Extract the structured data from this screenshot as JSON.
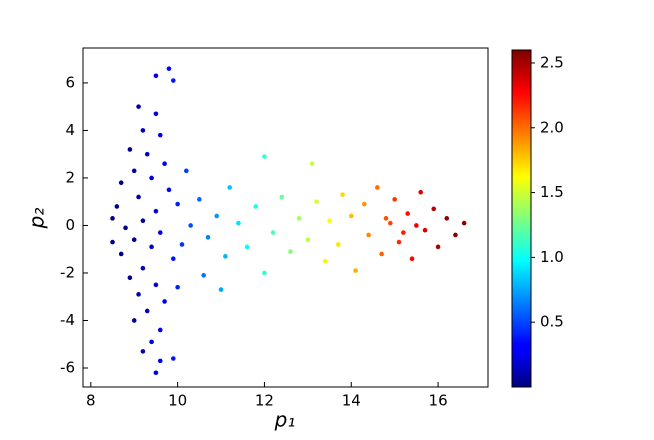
{
  "chart_data": {
    "type": "scatter",
    "xlabel": "p₁",
    "ylabel": "p₂",
    "xlim": [
      7.82,
      17.15
    ],
    "ylim": [
      -6.8,
      7.47
    ],
    "xticks": [
      8,
      10,
      12,
      14,
      16
    ],
    "yticks": [
      -6,
      -4,
      -2,
      0,
      2,
      4,
      6
    ],
    "colormap": "jet",
    "clim": [
      0,
      2.6
    ],
    "cticks": [
      0.5,
      {
        "value": 1.0,
        "label": "1.0"
      },
      1.5,
      {
        "value": 2.0,
        "label": "2.0"
      },
      2.5
    ],
    "x": [
      9.8,
      9.5,
      9.9,
      9.1,
      9.5,
      9.2,
      9.6,
      8.9,
      9.3,
      9.7,
      9.0,
      9.4,
      8.7,
      9.8,
      9.1,
      8.6,
      9.5,
      9.2,
      8.8,
      9.6,
      9.0,
      9.4,
      8.7,
      9.9,
      9.2,
      8.9,
      9.5,
      9.1,
      9.7,
      9.3,
      9.0,
      9.6,
      9.4,
      9.2,
      9.6,
      9.5,
      9.9,
      8.5,
      8.5,
      10.0,
      10.1,
      10.2,
      10.0,
      10.5,
      10.7,
      10.9,
      11.1,
      11.2,
      11.4,
      11.6,
      11.8,
      12.0,
      12.0,
      12.2,
      12.4,
      12.6,
      12.8,
      13.0,
      13.1,
      13.2,
      13.4,
      13.5,
      13.7,
      13.8,
      14.0,
      14.1,
      14.3,
      14.4,
      14.6,
      14.7,
      14.9,
      15.0,
      15.1,
      15.3,
      15.4,
      15.6,
      15.7,
      15.9,
      16.0,
      16.2,
      16.4,
      16.6,
      15.5,
      15.2,
      14.8,
      10.3,
      11.0,
      10.6
    ],
    "values": [
      6.6,
      6.3,
      6.1,
      5.0,
      4.7,
      4.0,
      3.8,
      3.2,
      3.0,
      2.6,
      2.3,
      2.0,
      1.8,
      1.5,
      1.2,
      0.8,
      0.6,
      0.2,
      -0.1,
      -0.3,
      -0.6,
      -0.9,
      -1.2,
      -1.4,
      -1.8,
      -2.2,
      -2.5,
      -2.9,
      -3.2,
      -3.6,
      -4.0,
      -4.4,
      -4.9,
      -5.3,
      -5.7,
      -6.2,
      -5.6,
      0.3,
      -0.7,
      0.9,
      -0.8,
      2.3,
      -2.6,
      1.1,
      -0.5,
      0.4,
      -1.3,
      1.6,
      0.1,
      -0.9,
      0.8,
      2.9,
      -2.0,
      -0.3,
      1.2,
      -1.1,
      0.3,
      -0.6,
      2.6,
      1.0,
      -1.5,
      0.2,
      -0.8,
      1.3,
      0.4,
      -1.9,
      0.9,
      -0.4,
      1.6,
      -1.2,
      0.1,
      1.1,
      -0.7,
      0.5,
      -1.4,
      1.4,
      -0.2,
      0.7,
      -0.9,
      0.3,
      -0.4,
      0.1,
      0.0,
      -0.3,
      0.3,
      0.0,
      -2.7,
      -2.1
    ],
    "c": [
      0.34,
      0.24,
      0.38,
      0.1,
      0.24,
      0.14,
      0.28,
      0.03,
      0.17,
      0.31,
      0.07,
      0.21,
      0.02,
      0.34,
      0.1,
      0.02,
      0.24,
      0.14,
      0.02,
      0.28,
      0.07,
      0.21,
      0.02,
      0.38,
      0.14,
      0.03,
      0.24,
      0.1,
      0.31,
      0.17,
      0.07,
      0.28,
      0.21,
      0.14,
      0.28,
      0.24,
      0.38,
      0.02,
      0.02,
      0.41,
      0.45,
      0.48,
      0.41,
      0.59,
      0.66,
      0.72,
      0.79,
      0.83,
      0.9,
      0.97,
      1.03,
      1.1,
      1.1,
      1.17,
      1.24,
      1.31,
      1.38,
      1.45,
      1.48,
      1.52,
      1.59,
      1.62,
      1.69,
      1.72,
      1.79,
      1.83,
      1.9,
      1.93,
      2.0,
      2.03,
      2.1,
      2.14,
      2.17,
      2.24,
      2.28,
      2.34,
      2.38,
      2.45,
      2.48,
      2.55,
      2.58,
      2.58,
      2.31,
      2.21,
      2.07,
      0.52,
      0.76,
      0.62
    ]
  }
}
